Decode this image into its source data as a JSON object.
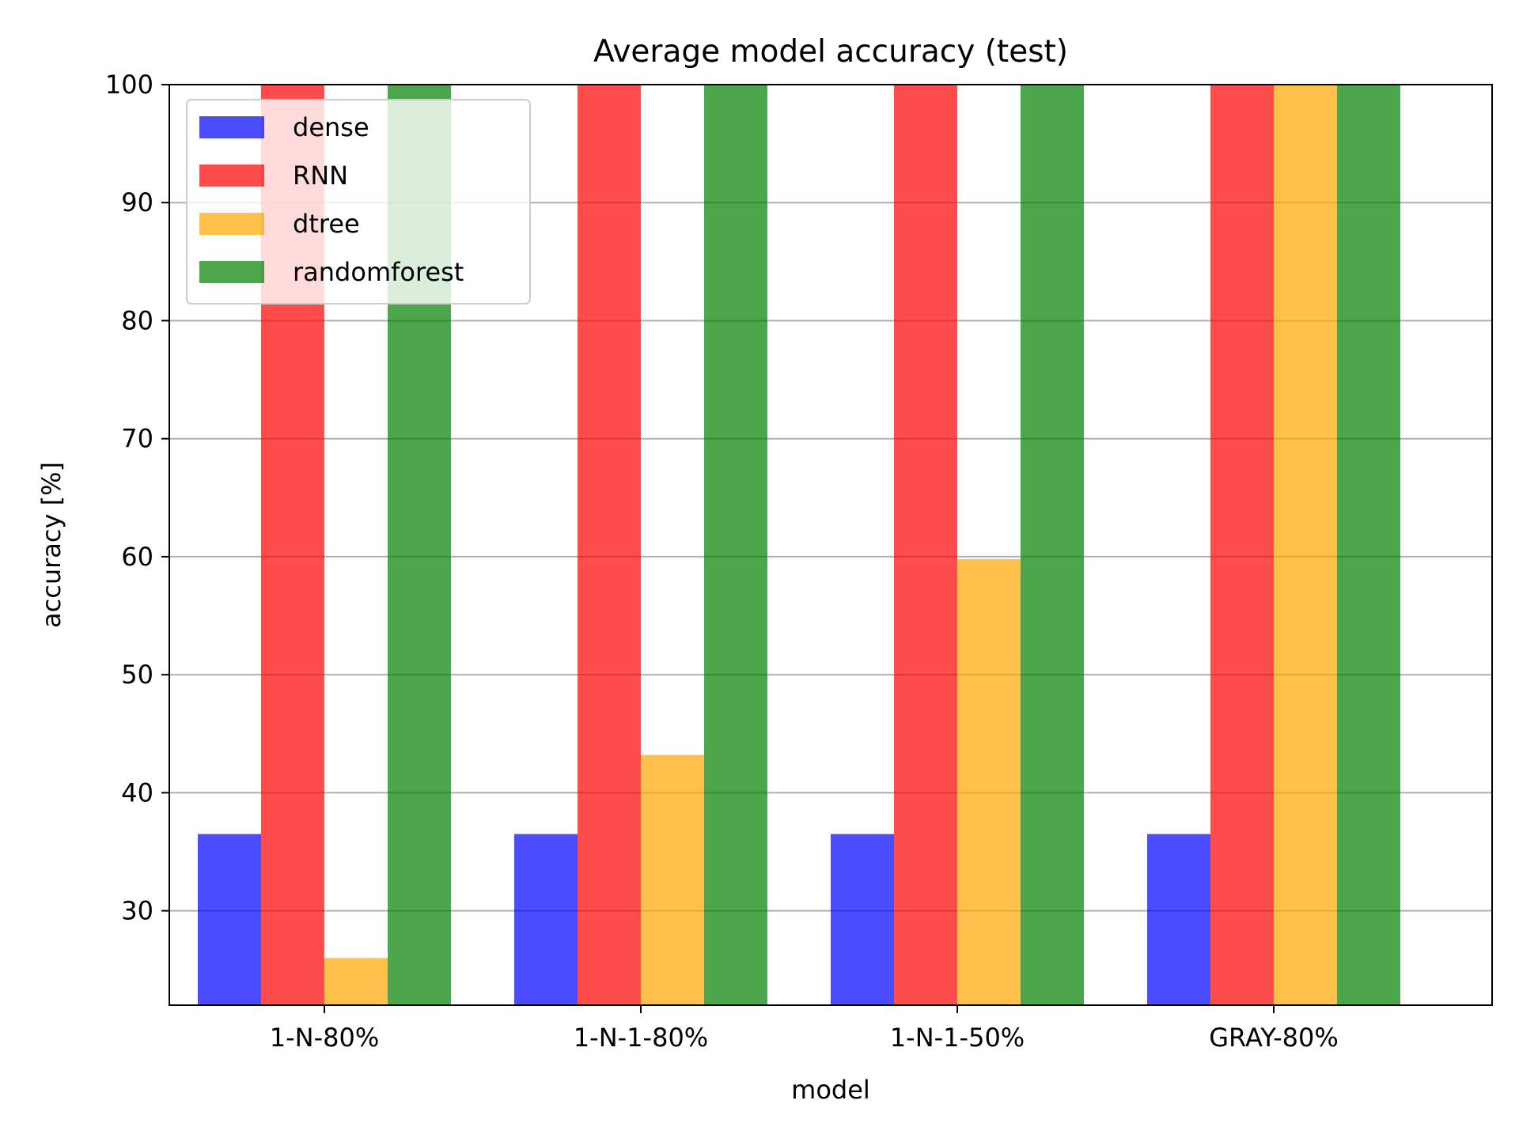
{
  "chart_data": {
    "type": "bar",
    "title": "Average model accuracy (test)",
    "xlabel": "model",
    "ylabel": "accuracy [%]",
    "categories": [
      "1-N-80%",
      "1-N-1-80%",
      "1-N-1-50%",
      "GRAY-80%"
    ],
    "ylim": [
      22,
      100
    ],
    "yticks": [
      30,
      40,
      50,
      60,
      70,
      80,
      90,
      100
    ],
    "grid": "horizontal",
    "legend_position": "top-left",
    "series": [
      {
        "name": "dense",
        "color": "#0000ff",
        "values": [
          36.5,
          36.5,
          36.5,
          36.5
        ]
      },
      {
        "name": "RNN",
        "color": "#ff0000",
        "values": [
          100,
          100,
          100,
          100
        ]
      },
      {
        "name": "dtree",
        "color": "#ffa500",
        "values": [
          26,
          43.2,
          59.8,
          100
        ]
      },
      {
        "name": "randomforest",
        "color": "#008000",
        "values": [
          100,
          100,
          100,
          100
        ]
      }
    ]
  }
}
